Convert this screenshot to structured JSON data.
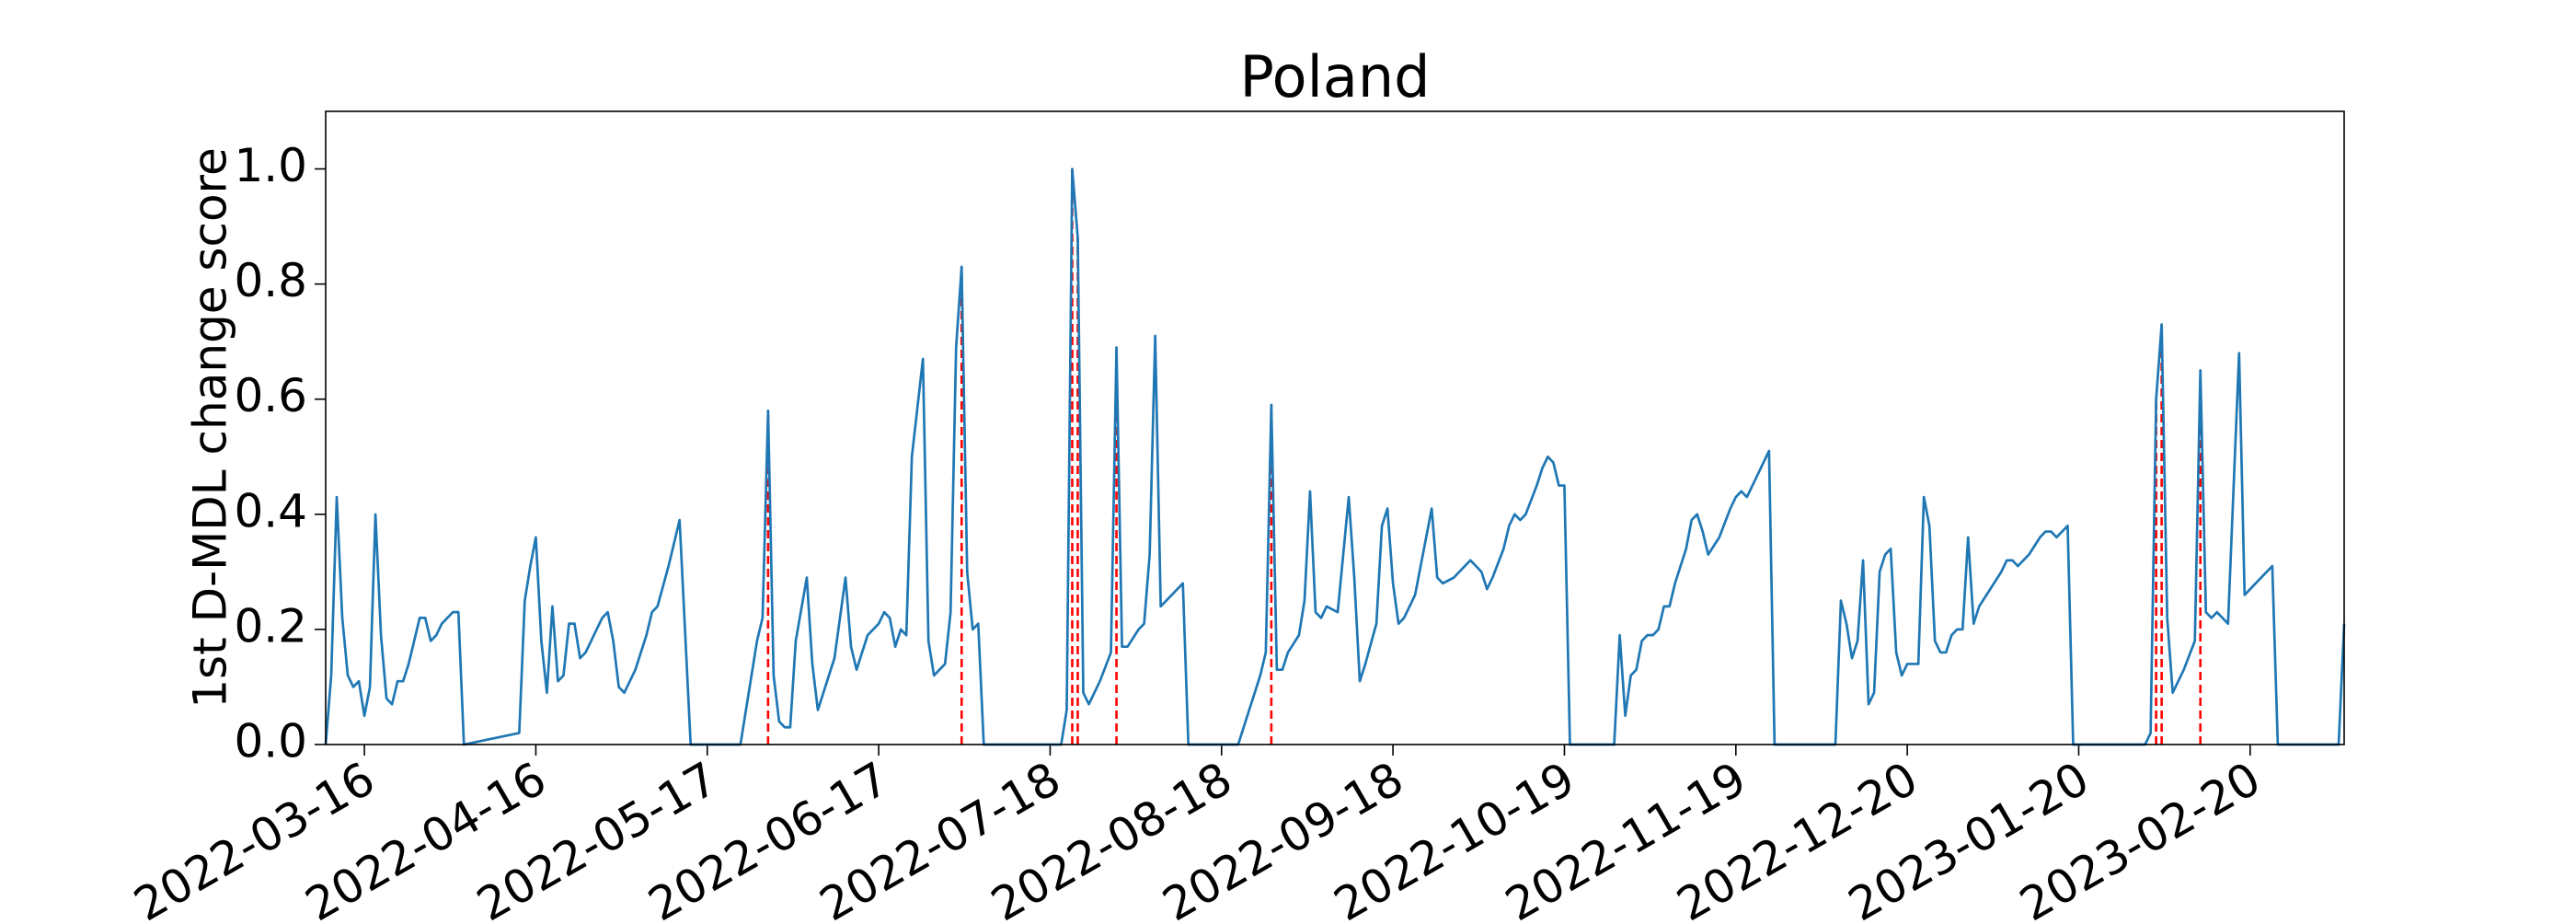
{
  "chart_data": {
    "type": "line",
    "title": "Poland",
    "ylabel": "1st D-MDL change score",
    "xlim": [
      "2022-03-09",
      "2023-03-09"
    ],
    "ylim": [
      0,
      1.1
    ],
    "xticks": [
      "2022-03-16",
      "2022-04-16",
      "2022-05-17",
      "2022-06-17",
      "2022-07-18",
      "2022-08-18",
      "2022-09-18",
      "2022-10-19",
      "2022-11-19",
      "2022-12-20",
      "2023-01-20",
      "2023-02-20"
    ],
    "yticks": [
      {
        "value": 0,
        "label": "0.0"
      },
      {
        "value": 0.2,
        "label": "0.2"
      },
      {
        "value": 0.4,
        "label": "0.4"
      },
      {
        "value": 0.6,
        "label": "0.6"
      },
      {
        "value": 0.8,
        "label": "0.8"
      },
      {
        "value": 1.0,
        "label": "1.0"
      }
    ],
    "grid": false,
    "x": [
      "2022-03-09",
      "2022-03-10",
      "2022-03-11",
      "2022-03-12",
      "2022-03-13",
      "2022-03-14",
      "2022-03-15",
      "2022-03-16",
      "2022-03-17",
      "2022-03-18",
      "2022-03-19",
      "2022-03-20",
      "2022-03-21",
      "2022-03-22",
      "2022-03-23",
      "2022-03-24",
      "2022-03-25",
      "2022-03-26",
      "2022-03-27",
      "2022-03-28",
      "2022-03-29",
      "2022-03-30",
      "2022-03-31",
      "2022-04-01",
      "2022-04-02",
      "2022-04-03",
      "2022-04-13",
      "2022-04-14",
      "2022-04-15",
      "2022-04-16",
      "2022-04-17",
      "2022-04-18",
      "2022-04-19",
      "2022-04-20",
      "2022-04-21",
      "2022-04-22",
      "2022-04-23",
      "2022-04-24",
      "2022-04-25",
      "2022-04-26",
      "2022-04-27",
      "2022-04-28",
      "2022-04-29",
      "2022-04-30",
      "2022-05-01",
      "2022-05-02",
      "2022-05-03",
      "2022-05-04",
      "2022-05-06",
      "2022-05-07",
      "2022-05-08",
      "2022-05-10",
      "2022-05-12",
      "2022-05-14",
      "2022-05-23",
      "2022-05-26",
      "2022-05-27",
      "2022-05-28",
      "2022-05-29",
      "2022-05-30",
      "2022-05-31",
      "2022-06-01",
      "2022-06-02",
      "2022-06-04",
      "2022-06-05",
      "2022-06-06",
      "2022-06-08",
      "2022-06-09",
      "2022-06-11",
      "2022-06-12",
      "2022-06-13",
      "2022-06-15",
      "2022-06-16",
      "2022-06-17",
      "2022-06-18",
      "2022-06-19",
      "2022-06-20",
      "2022-06-21",
      "2022-06-22",
      "2022-06-23",
      "2022-06-25",
      "2022-06-26",
      "2022-06-27",
      "2022-06-29",
      "2022-06-30",
      "2022-07-01",
      "2022-07-02",
      "2022-07-03",
      "2022-07-04",
      "2022-07-05",
      "2022-07-06",
      "2022-07-20",
      "2022-07-21",
      "2022-07-22",
      "2022-07-23",
      "2022-07-24",
      "2022-07-25",
      "2022-07-27",
      "2022-07-29",
      "2022-07-30",
      "2022-07-31",
      "2022-08-01",
      "2022-08-03",
      "2022-08-04",
      "2022-08-05",
      "2022-08-06",
      "2022-08-07",
      "2022-08-09",
      "2022-08-11",
      "2022-08-12",
      "2022-08-21",
      "2022-08-25",
      "2022-08-26",
      "2022-08-27",
      "2022-08-28",
      "2022-08-29",
      "2022-08-30",
      "2022-09-01",
      "2022-09-02",
      "2022-09-03",
      "2022-09-04",
      "2022-09-05",
      "2022-09-06",
      "2022-09-08",
      "2022-09-10",
      "2022-09-11",
      "2022-09-12",
      "2022-09-13",
      "2022-09-15",
      "2022-09-16",
      "2022-09-17",
      "2022-09-18",
      "2022-09-19",
      "2022-09-20",
      "2022-09-22",
      "2022-09-24",
      "2022-09-25",
      "2022-09-26",
      "2022-09-27",
      "2022-09-29",
      "2022-10-01",
      "2022-10-02",
      "2022-10-04",
      "2022-10-05",
      "2022-10-06",
      "2022-10-08",
      "2022-10-09",
      "2022-10-10",
      "2022-10-11",
      "2022-10-12",
      "2022-10-14",
      "2022-10-15",
      "2022-10-16",
      "2022-10-17",
      "2022-10-18",
      "2022-10-19",
      "2022-10-20",
      "2022-10-28",
      "2022-10-29",
      "2022-10-30",
      "2022-10-31",
      "2022-11-01",
      "2022-11-02",
      "2022-11-03",
      "2022-11-04",
      "2022-11-05",
      "2022-11-06",
      "2022-11-07",
      "2022-11-08",
      "2022-11-10",
      "2022-11-11",
      "2022-11-12",
      "2022-11-13",
      "2022-11-14",
      "2022-11-16",
      "2022-11-18",
      "2022-11-19",
      "2022-11-20",
      "2022-11-21",
      "2022-11-23",
      "2022-11-25",
      "2022-11-26",
      "2022-12-07",
      "2022-12-08",
      "2022-12-09",
      "2022-12-10",
      "2022-12-11",
      "2022-12-12",
      "2022-12-13",
      "2022-12-14",
      "2022-12-15",
      "2022-12-16",
      "2022-12-17",
      "2022-12-18",
      "2022-12-19",
      "2022-12-20",
      "2022-12-22",
      "2022-12-23",
      "2022-12-24",
      "2022-12-25",
      "2022-12-26",
      "2022-12-27",
      "2022-12-28",
      "2022-12-29",
      "2022-12-30",
      "2022-12-31",
      "2023-01-01",
      "2023-01-02",
      "2023-01-04",
      "2023-01-06",
      "2023-01-07",
      "2023-01-08",
      "2023-01-09",
      "2023-01-11",
      "2023-01-13",
      "2023-01-14",
      "2023-01-15",
      "2023-01-16",
      "2023-01-18",
      "2023-01-19",
      "2023-02-01",
      "2023-02-02",
      "2023-02-03",
      "2023-02-04",
      "2023-02-05",
      "2023-02-06",
      "2023-02-08",
      "2023-02-10",
      "2023-02-11",
      "2023-02-12",
      "2023-02-13",
      "2023-02-14",
      "2023-02-16",
      "2023-02-18",
      "2023-02-19",
      "2023-02-21",
      "2023-02-23",
      "2023-02-24",
      "2023-02-25",
      "2023-03-08",
      "2023-03-09"
    ],
    "series": [
      {
        "color": "#1f77b4",
        "values": [
          0,
          0.12,
          0.43,
          0.22,
          0.12,
          0.1,
          0.11,
          0.05,
          0.1,
          0.4,
          0.19,
          0.08,
          0.07,
          0.11,
          0.11,
          0.14,
          0.18,
          0.22,
          0.22,
          0.18,
          0.19,
          0.21,
          0.22,
          0.23,
          0.23,
          0,
          0.02,
          0.25,
          0.31,
          0.36,
          0.18,
          0.09,
          0.24,
          0.11,
          0.12,
          0.21,
          0.21,
          0.15,
          0.16,
          0.18,
          0.2,
          0.22,
          0.23,
          0.18,
          0.1,
          0.09,
          0.11,
          0.13,
          0.19,
          0.23,
          0.24,
          0.31,
          0.39,
          0,
          0,
          0.18,
          0.22,
          0.58,
          0.12,
          0.04,
          0.03,
          0.03,
          0.18,
          0.29,
          0.14,
          0.06,
          0.12,
          0.15,
          0.29,
          0.17,
          0.13,
          0.19,
          0.2,
          0.21,
          0.23,
          0.22,
          0.17,
          0.2,
          0.19,
          0.5,
          0.67,
          0.18,
          0.12,
          0.14,
          0.23,
          0.69,
          0.83,
          0.3,
          0.2,
          0.21,
          0,
          0,
          0.06,
          1.0,
          0.88,
          0.09,
          0.07,
          0.11,
          0.16,
          0.69,
          0.17,
          0.17,
          0.2,
          0.21,
          0.33,
          0.71,
          0.24,
          0.26,
          0.28,
          0,
          0,
          0.12,
          0.16,
          0.59,
          0.13,
          0.13,
          0.16,
          0.19,
          0.25,
          0.44,
          0.23,
          0.22,
          0.24,
          0.23,
          0.43,
          0.29,
          0.11,
          0.14,
          0.21,
          0.38,
          0.41,
          0.28,
          0.21,
          0.22,
          0.26,
          0.36,
          0.41,
          0.29,
          0.28,
          0.29,
          0.31,
          0.32,
          0.3,
          0.27,
          0.29,
          0.34,
          0.38,
          0.4,
          0.39,
          0.4,
          0.45,
          0.48,
          0.5,
          0.49,
          0.45,
          0.45,
          0,
          0,
          0.19,
          0.05,
          0.12,
          0.13,
          0.18,
          0.19,
          0.19,
          0.2,
          0.24,
          0.24,
          0.28,
          0.34,
          0.39,
          0.4,
          0.37,
          0.33,
          0.36,
          0.41,
          0.43,
          0.44,
          0.43,
          0.47,
          0.51,
          0,
          0,
          0.25,
          0.21,
          0.15,
          0.18,
          0.32,
          0.07,
          0.09,
          0.3,
          0.33,
          0.34,
          0.16,
          0.12,
          0.14,
          0.14,
          0.43,
          0.38,
          0.18,
          0.16,
          0.16,
          0.19,
          0.2,
          0.2,
          0.36,
          0.21,
          0.24,
          0.27,
          0.3,
          0.32,
          0.32,
          0.31,
          0.33,
          0.36,
          0.37,
          0.37,
          0.36,
          0.38,
          0,
          0,
          0.02,
          0.6,
          0.73,
          0.22,
          0.09,
          0.13,
          0.18,
          0.65,
          0.23,
          0.22,
          0.23,
          0.21,
          0.68,
          0.26,
          0.28,
          0.3,
          0.31,
          0,
          0,
          0.21
        ]
      }
    ],
    "change_points": {
      "color": "red",
      "linestyle": "dashed",
      "x": [
        "2022-05-28",
        "2022-07-02",
        "2022-07-22",
        "2022-07-23",
        "2022-07-30",
        "2022-08-27",
        "2023-02-03",
        "2023-02-04",
        "2023-02-11"
      ],
      "values": [
        0.58,
        0.83,
        1.0,
        0.88,
        0.69,
        0.59,
        0.6,
        0.73,
        0.65
      ]
    }
  }
}
